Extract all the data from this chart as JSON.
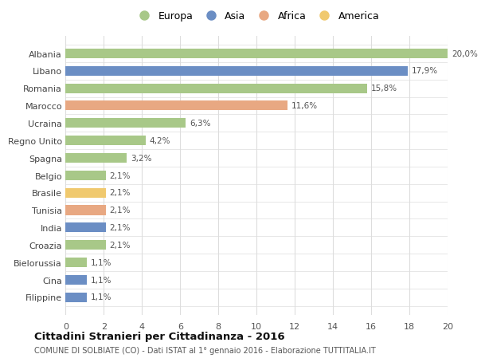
{
  "countries": [
    "Albania",
    "Libano",
    "Romania",
    "Marocco",
    "Ucraina",
    "Regno Unito",
    "Spagna",
    "Belgio",
    "Brasile",
    "Tunisia",
    "India",
    "Croazia",
    "Bielorussia",
    "Cina",
    "Filippine"
  ],
  "values": [
    20.0,
    17.9,
    15.8,
    11.6,
    6.3,
    4.2,
    3.2,
    2.1,
    2.1,
    2.1,
    2.1,
    2.1,
    1.1,
    1.1,
    1.1
  ],
  "labels": [
    "20,0%",
    "17,9%",
    "15,8%",
    "11,6%",
    "6,3%",
    "4,2%",
    "3,2%",
    "2,1%",
    "2,1%",
    "2,1%",
    "2,1%",
    "2,1%",
    "1,1%",
    "1,1%",
    "1,1%"
  ],
  "continents": [
    "Europa",
    "Asia",
    "Europa",
    "Africa",
    "Europa",
    "Europa",
    "Europa",
    "Europa",
    "America",
    "Africa",
    "Asia",
    "Europa",
    "Europa",
    "Asia",
    "Asia"
  ],
  "colors": {
    "Europa": "#a8c888",
    "Asia": "#6b8ec4",
    "Africa": "#e8a882",
    "America": "#f0c96e"
  },
  "legend_order": [
    "Europa",
    "Asia",
    "Africa",
    "America"
  ],
  "title": "Cittadini Stranieri per Cittadinanza - 2016",
  "subtitle": "COMUNE DI SOLBIATE (CO) - Dati ISTAT al 1° gennaio 2016 - Elaborazione TUTTITALIA.IT",
  "xlim": [
    0,
    20
  ],
  "xticks": [
    0,
    2,
    4,
    6,
    8,
    10,
    12,
    14,
    16,
    18,
    20
  ],
  "background_color": "#ffffff",
  "grid_color": "#dddddd",
  "bar_height": 0.55
}
